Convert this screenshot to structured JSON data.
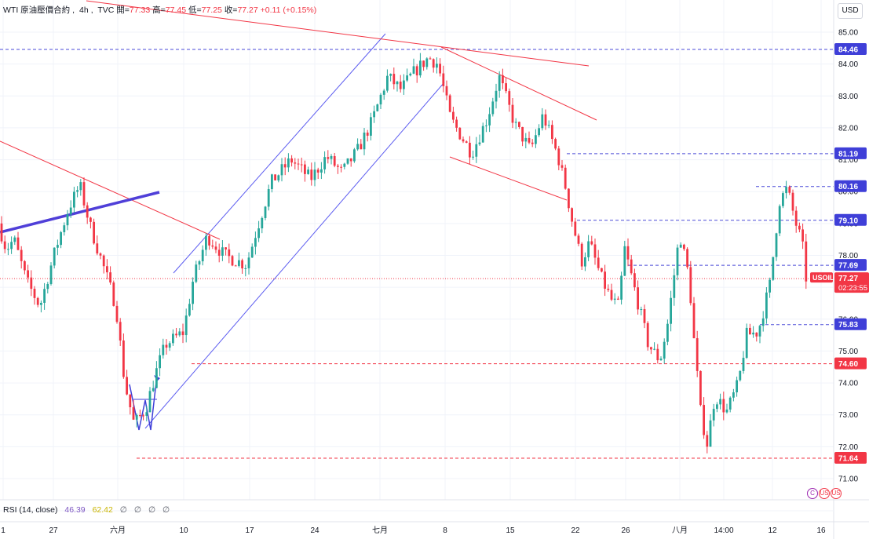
{
  "legend": {
    "symbol": "WTI 原油壓價合約",
    "interval": "4h",
    "source": "TVC",
    "open_label": "開=",
    "open": "77.33",
    "high_label": "高=",
    "high": "77.45",
    "low_label": "低=",
    "low": "77.25",
    "close_label": "收=",
    "close": "77.27",
    "change": "+0.11 (+0.15%)"
  },
  "currency": "USD",
  "rsi": {
    "label": "RSI (14, close)",
    "value": "46.39",
    "ma": "62.42",
    "extra": [
      "∅",
      "∅",
      "∅",
      "∅"
    ]
  },
  "flags": [
    "C",
    "US",
    "US"
  ],
  "colors": {
    "up": "#26a69a",
    "down": "#f23645",
    "channel": "#5b5bf0",
    "trendline": "#f23645",
    "level_blue": "#4a4ad8",
    "level_red": "#f23645"
  },
  "chart_data": {
    "type": "candlestick",
    "symbol": "USOIL",
    "ylim": [
      70.7,
      85.5
    ],
    "y_ticks": [
      "85.00",
      "84.00",
      "83.00",
      "82.00",
      "81.00",
      "80.00",
      "79.00",
      "78.00",
      "77.00",
      "76.00",
      "75.00",
      "74.00",
      "73.00",
      "72.00",
      "71.00"
    ],
    "x_ticks": [
      "1",
      "27",
      "六月",
      "10",
      "17",
      "24",
      "七月",
      "8",
      "15",
      "22",
      "26",
      "八月",
      "14:00",
      "12",
      "16"
    ],
    "levels": [
      {
        "value": "84.46",
        "color": "blue"
      },
      {
        "value": "81.19",
        "color": "blue"
      },
      {
        "value": "80.16",
        "color": "blue"
      },
      {
        "value": "79.10",
        "color": "blue"
      },
      {
        "value": "77.69",
        "color": "blue"
      },
      {
        "value": "75.83",
        "color": "blue"
      },
      {
        "value": "74.60",
        "color": "red"
      },
      {
        "value": "71.64",
        "color": "red"
      }
    ],
    "last_price": {
      "symbol": "USOIL",
      "price": "77.27",
      "countdown": "02:23:55"
    },
    "path_points": [
      [
        79.0,
        2
      ],
      [
        78.2,
        12
      ],
      [
        78.5,
        22
      ],
      [
        77.2,
        38
      ],
      [
        76.4,
        55
      ],
      [
        78.2,
        75
      ],
      [
        79.5,
        92
      ],
      [
        80.2,
        106
      ],
      [
        79.0,
        118
      ],
      [
        77.5,
        138
      ],
      [
        76.4,
        152
      ],
      [
        74.0,
        163
      ],
      [
        72.7,
        175
      ],
      [
        73.2,
        190
      ],
      [
        74.5,
        205
      ],
      [
        75.2,
        215
      ],
      [
        75.6,
        238
      ],
      [
        77.2,
        250
      ],
      [
        78.6,
        268
      ],
      [
        78.0,
        290
      ],
      [
        77.7,
        318
      ],
      [
        78.7,
        330
      ],
      [
        80.3,
        350
      ],
      [
        81.0,
        375
      ],
      [
        80.4,
        400
      ],
      [
        81.1,
        420
      ],
      [
        80.6,
        440
      ],
      [
        81.3,
        460
      ],
      [
        82.2,
        478
      ],
      [
        83.6,
        498
      ],
      [
        83.2,
        515
      ],
      [
        83.7,
        530
      ],
      [
        84.2,
        550
      ],
      [
        84.0,
        562
      ],
      [
        82.3,
        578
      ],
      [
        81.2,
        605
      ],
      [
        82.3,
        625
      ],
      [
        83.6,
        640
      ],
      [
        82.1,
        660
      ],
      [
        81.3,
        680
      ],
      [
        82.4,
        696
      ],
      [
        81.1,
        715
      ],
      [
        80.1,
        725
      ],
      [
        79.2,
        732
      ],
      [
        77.8,
        745
      ],
      [
        78.4,
        755
      ],
      [
        77.3,
        770
      ],
      [
        76.6,
        783
      ],
      [
        76.4,
        792
      ],
      [
        78.2,
        800
      ],
      [
        77.0,
        812
      ],
      [
        75.2,
        830
      ],
      [
        74.7,
        845
      ],
      [
        75.9,
        855
      ],
      [
        78.7,
        870
      ],
      [
        77.3,
        882
      ],
      [
        75.4,
        888
      ],
      [
        73.0,
        897
      ],
      [
        72.1,
        905
      ],
      [
        73.6,
        915
      ],
      [
        73.1,
        930
      ],
      [
        74.0,
        945
      ],
      [
        75.5,
        955
      ],
      [
        75.6,
        970
      ],
      [
        77.1,
        985
      ],
      [
        79.7,
        997
      ],
      [
        80.1,
        1007
      ],
      [
        79.0,
        1018
      ],
      [
        78.4,
        1026
      ],
      [
        77.3,
        1031
      ]
    ]
  }
}
